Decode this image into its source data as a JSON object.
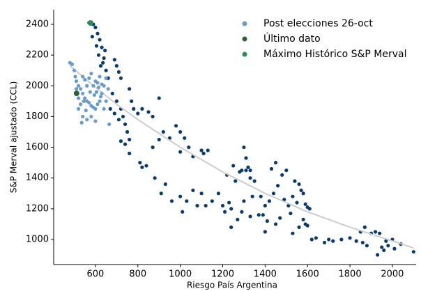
{
  "chart_data": {
    "type": "scatter",
    "x_label": "Riesgo País Argentina",
    "y_label": "S&P Merval ajustado (CCL)",
    "xlim": [
      403,
      2112
    ],
    "ylim": [
      837,
      2495
    ],
    "xticks": [
      600,
      800,
      1000,
      1200,
      1400,
      1600,
      1800,
      2000
    ],
    "yticks": [
      1000,
      1200,
      1400,
      1600,
      1800,
      2000,
      2200,
      2400
    ],
    "legend": "upper right",
    "fit_line": {
      "color": "#cccccc",
      "x": [
        480,
        600,
        700,
        800,
        900,
        1000,
        1200,
        1400,
        1600,
        1800,
        2000,
        2100
      ],
      "values": [
        2130,
        1990,
        1880,
        1780,
        1690,
        1600,
        1440,
        1300,
        1180,
        1080,
        990,
        945
      ]
    },
    "series": [
      {
        "color": "#0b3a6b",
        "x": [
          570,
          590,
          600,
          610,
          620,
          630,
          615,
          640,
          625,
          650,
          605,
          585,
          660,
          645,
          635,
          690,
          700,
          710,
          720,
          680,
          700,
          720,
          730,
          740,
          750,
          760,
          710,
          690,
          670,
          740,
          760,
          770,
          780,
          760,
          720,
          800,
          820,
          850,
          870,
          900,
          810,
          820,
          840,
          880,
          870,
          900,
          920,
          950,
          980,
          1000,
          910,
          930,
          960,
          1000,
          1010,
          1030,
          1060,
          1080,
          1100,
          1120,
          1040,
          1060,
          1100,
          1110,
          1000,
          1130,
          1020,
          1150,
          1180,
          1200,
          1210,
          1230,
          1240,
          1260,
          1280,
          1290,
          1300,
          1310,
          1320,
          1330,
          1250,
          1220,
          1350,
          1300,
          1340,
          1270,
          1290,
          1240,
          1330,
          1310,
          1330,
          1370,
          1390,
          1400,
          1410,
          1420,
          1440,
          1460,
          1480,
          1450,
          1430,
          1500,
          1510,
          1520,
          1470,
          1450,
          1400,
          1380,
          1490,
          1530,
          1550,
          1560,
          1570,
          1580,
          1590,
          1600,
          1610,
          1580,
          1560,
          1530,
          1600,
          1620,
          1540,
          1590,
          1640,
          1680,
          1700,
          1720,
          1760,
          1800,
          1830,
          1850,
          1870,
          1860,
          1880,
          1900,
          1920,
          1940,
          1950,
          1960,
          1980,
          2000,
          2010,
          2040,
          2100,
          1930,
          1970
        ],
        "values": [
          2410,
          2400,
          2380,
          2340,
          2300,
          2250,
          2200,
          2180,
          2130,
          2100,
          2260,
          2320,
          2050,
          2230,
          2150,
          2170,
          2130,
          2090,
          2050,
          1950,
          1900,
          1850,
          1800,
          1750,
          1700,
          1650,
          1780,
          1820,
          1850,
          1620,
          1980,
          1900,
          1850,
          1560,
          1640,
          1820,
          1850,
          1830,
          1800,
          1920,
          1500,
          1470,
          1480,
          1400,
          1600,
          1650,
          1700,
          1660,
          1740,
          1700,
          1300,
          1360,
          1250,
          1280,
          1180,
          1250,
          1320,
          1220,
          1300,
          1220,
          1600,
          1540,
          1580,
          1560,
          1570,
          1580,
          1660,
          1250,
          1300,
          1220,
          1180,
          1240,
          1200,
          1380,
          1440,
          1450,
          1600,
          1530,
          1470,
          1450,
          1480,
          1420,
          1380,
          1250,
          1280,
          1130,
          1180,
          1080,
          1150,
          1450,
          1400,
          1160,
          1160,
          1220,
          1120,
          1250,
          1300,
          1350,
          1420,
          1500,
          1460,
          1450,
          1220,
          1170,
          1140,
          1100,
          1050,
          1280,
          1260,
          1280,
          1240,
          1360,
          1320,
          1300,
          1230,
          1210,
          1200,
          1130,
          1080,
          1040,
          1090,
          1000,
          1380,
          1100,
          1010,
          980,
          1000,
          990,
          1000,
          1010,
          990,
          1050,
          1080,
          980,
          960,
          1040,
          1050,
          1040,
          950,
          930,
          960,
          1000,
          940,
          970,
          920,
          900,
          990
        ]
      },
      {
        "name": "Post elecciones 26-oct",
        "color": "#6a9bc9",
        "x": [
          480,
          490,
          500,
          505,
          510,
          520,
          530,
          540,
          550,
          560,
          570,
          580,
          590,
          600,
          610,
          620,
          630,
          640,
          650,
          600,
          610,
          590,
          580,
          570,
          560,
          550,
          540,
          530,
          520,
          540,
          560,
          580,
          600,
          650,
          660,
          630,
          620,
          640,
          510,
          520,
          535,
          545,
          555,
          575,
          595,
          605,
          615,
          625,
          665
        ],
        "values": [
          2150,
          2140,
          2100,
          2060,
          2030,
          2000,
          1980,
          1950,
          1920,
          1900,
          1890,
          1870,
          1860,
          1850,
          1880,
          1900,
          1950,
          2000,
          2050,
          2030,
          2020,
          2000,
          2080,
          2050,
          2000,
          2040,
          2060,
          1880,
          1850,
          1800,
          1780,
          1800,
          1770,
          1900,
          1980,
          2010,
          2060,
          1850,
          1980,
          1920,
          1760,
          1900,
          1840,
          1960,
          1940,
          1960,
          1990,
          1930,
          1750
        ]
      },
      {
        "name": "Último dato",
        "color": "#2d5f3f",
        "x": [
          511
        ],
        "values": [
          1951
        ]
      },
      {
        "name": "Máximo Histórico S&P Merval",
        "color": "#2e8b57",
        "x": [
          577
        ],
        "values": [
          2409
        ]
      }
    ]
  }
}
